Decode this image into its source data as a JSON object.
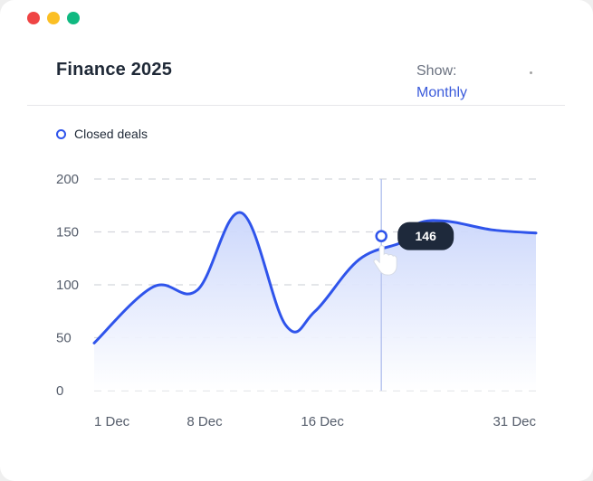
{
  "window": {
    "controls": [
      "close-dot",
      "minimize-dot",
      "zoom-dot"
    ],
    "colors": {
      "close": "#ef4444",
      "minimize": "#fbbf24",
      "zoom": "#10b981"
    }
  },
  "header": {
    "title": "Finance 2025",
    "show_label": "Show:",
    "show_value": "Monthly"
  },
  "legend": {
    "label": "Closed deals"
  },
  "tooltip": {
    "value": "146"
  },
  "colors": {
    "line": "#2f54eb",
    "fill_top": "#c9d5fb",
    "fill_bottom": "#ffffff",
    "tooltip_bg": "#1e293b",
    "hover_line": "#b9c6ef"
  },
  "chart_data": {
    "type": "area",
    "title": "Finance 2025",
    "xlabel": "",
    "ylabel": "",
    "ylim": [
      0,
      200
    ],
    "yticks": [
      0,
      50,
      100,
      150,
      200
    ],
    "grid": true,
    "legend": "top-left",
    "series": [
      {
        "name": "Closed deals",
        "x": [
          0,
          4,
          7,
          10,
          13,
          15,
          18,
          21,
          22,
          24,
          27,
          30
        ],
        "values": [
          45,
          98,
          95,
          168,
          62,
          75,
          124,
          141,
          158,
          160,
          152,
          149
        ]
      }
    ],
    "xaxis": {
      "ticks": [
        {
          "x": 0,
          "label": "1 Dec"
        },
        {
          "x": 7.5,
          "label": "8 Dec"
        },
        {
          "x": 15.5,
          "label": "16 Dec"
        },
        {
          "x": 30,
          "label": "31 Dec"
        }
      ],
      "range": [
        0,
        30
      ]
    },
    "highlight": {
      "x": 19.5,
      "value": 146,
      "label": "146"
    }
  }
}
